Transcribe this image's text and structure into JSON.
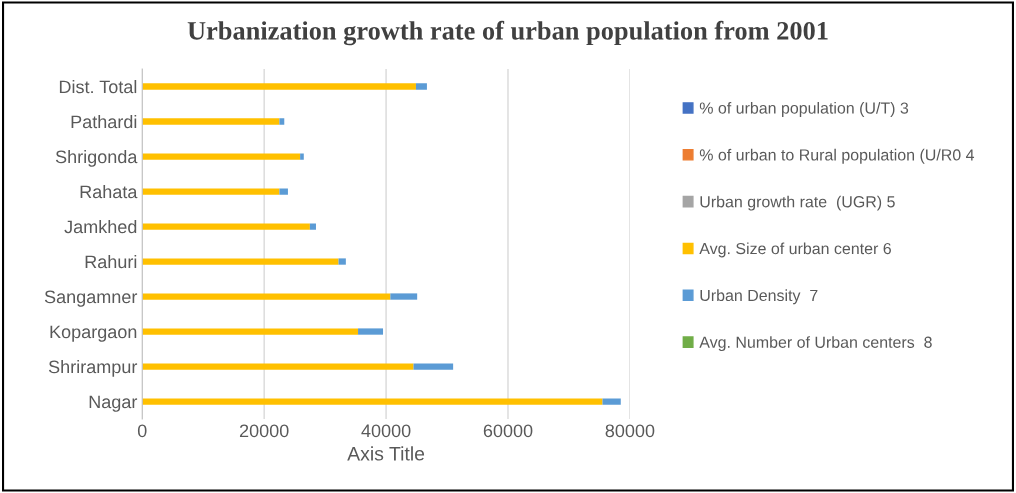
{
  "chart_data": {
    "type": "bar",
    "orientation": "horizontal",
    "stacked": true,
    "title": "Urbanization growth rate of urban population from 2001",
    "xlabel": "Axis Title",
    "categories": [
      "Dist. Total",
      "Pathardi",
      "Shrigonda",
      "Rahata",
      "Jamkhed",
      "Rahuri",
      "Sangamner",
      "Kopargaon",
      "Shrirampur",
      "Nagar"
    ],
    "series": [
      {
        "name": "% of urban population (U/T) 3",
        "color": "#4472c4",
        "values": [
          null,
          null,
          null,
          null,
          null,
          null,
          null,
          null,
          null,
          null
        ]
      },
      {
        "name": "% of urban to Rural population (U/R0 4",
        "color": "#ed7d31",
        "values": [
          null,
          null,
          null,
          null,
          null,
          null,
          null,
          null,
          null,
          null
        ]
      },
      {
        "name": "Urban growth rate  (UGR) 5",
        "color": "#a5a5a5",
        "values": [
          null,
          null,
          null,
          null,
          null,
          null,
          null,
          null,
          null,
          null
        ]
      },
      {
        "name": "Avg. Size of urban center 6",
        "color": "#ffc000",
        "values": [
          44900,
          22500,
          25900,
          22500,
          27500,
          32200,
          40700,
          35400,
          44500,
          75500
        ]
      },
      {
        "name": "Urban Density  7",
        "color": "#5b9bd5",
        "values": [
          1800,
          800,
          600,
          1400,
          1000,
          1200,
          4400,
          4100,
          6500,
          3000
        ]
      },
      {
        "name": "Avg. Number of Urban centers  8",
        "color": "#70ad47",
        "values": [
          null,
          null,
          null,
          null,
          null,
          null,
          null,
          null,
          null,
          null
        ]
      }
    ],
    "xlim": [
      0,
      80000
    ],
    "xticks": [
      0,
      20000,
      40000,
      60000,
      80000
    ],
    "grid": "x",
    "legend": "right"
  }
}
